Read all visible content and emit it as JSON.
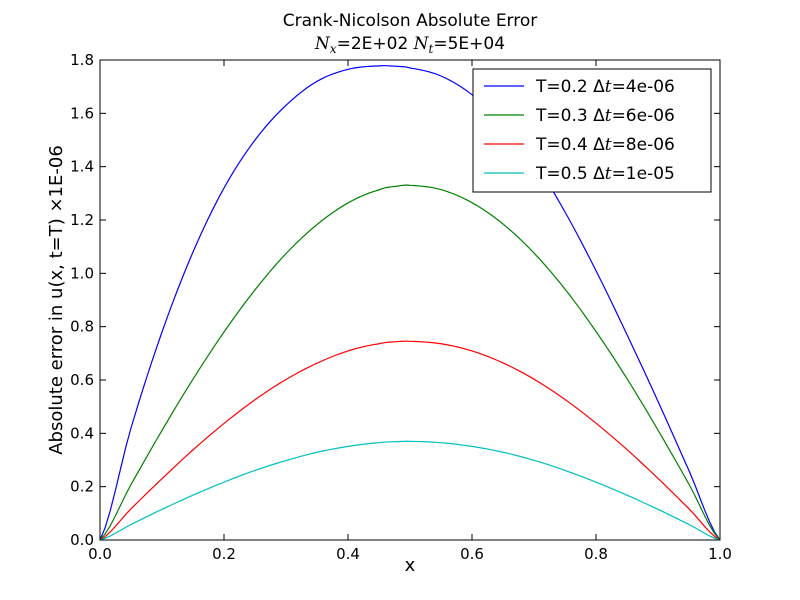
{
  "chart_data": {
    "type": "line",
    "title": "Crank-Nicolson Absolute Error",
    "subtitle": "N_x=2E+02 N_t=5E+04",
    "xlabel": "x",
    "ylabel": "Absolute error in u(x, t=T)  ×1E-06",
    "xlim": [
      0.0,
      1.0
    ],
    "ylim": [
      0.0,
      1.8
    ],
    "xticks": [
      "0.0",
      "0.2",
      "0.4",
      "0.6",
      "0.8",
      "1.0"
    ],
    "yticks": [
      "0.0",
      "0.2",
      "0.4",
      "0.6",
      "0.8",
      "1.0",
      "1.2",
      "1.4",
      "1.6",
      "1.8"
    ],
    "grid": false,
    "legend_position": "top-right",
    "x": [
      0.0,
      0.05,
      0.1,
      0.15,
      0.2,
      0.25,
      0.3,
      0.35,
      0.4,
      0.45,
      0.48,
      0.5,
      0.55,
      0.6,
      0.65,
      0.7,
      0.75,
      0.8,
      0.85,
      0.9,
      0.95,
      1.0
    ],
    "series": [
      {
        "name": "T=0.2 Δt=4e-06",
        "color": "#0000ff",
        "values": [
          0.0,
          0.42,
          0.78,
          1.08,
          1.32,
          1.5,
          1.63,
          1.72,
          1.765,
          1.778,
          1.776,
          1.77,
          1.74,
          1.67,
          1.56,
          1.42,
          1.23,
          1.01,
          0.77,
          0.52,
          0.26,
          0.0
        ]
      },
      {
        "name": "T=0.3 Δt=6e-06",
        "color": "#008000",
        "values": [
          0.0,
          0.208,
          0.411,
          0.603,
          0.78,
          0.938,
          1.074,
          1.183,
          1.264,
          1.313,
          1.327,
          1.33,
          1.314,
          1.265,
          1.185,
          1.076,
          0.941,
          0.782,
          0.605,
          0.412,
          0.209,
          0.0
        ]
      },
      {
        "name": "T=0.4 Δt=8e-06",
        "color": "#ff0000",
        "values": [
          0.0,
          0.117,
          0.23,
          0.338,
          0.437,
          0.526,
          0.602,
          0.663,
          0.709,
          0.736,
          0.744,
          0.745,
          0.736,
          0.709,
          0.664,
          0.603,
          0.527,
          0.438,
          0.339,
          0.231,
          0.117,
          0.0
        ]
      },
      {
        "name": "T=0.5 Δt=1e-05",
        "color": "#00bfbf",
        "values": [
          0.0,
          0.058,
          0.115,
          0.168,
          0.217,
          0.261,
          0.298,
          0.329,
          0.351,
          0.365,
          0.369,
          0.37,
          0.365,
          0.351,
          0.329,
          0.299,
          0.261,
          0.217,
          0.168,
          0.115,
          0.058,
          0.0
        ]
      }
    ]
  }
}
